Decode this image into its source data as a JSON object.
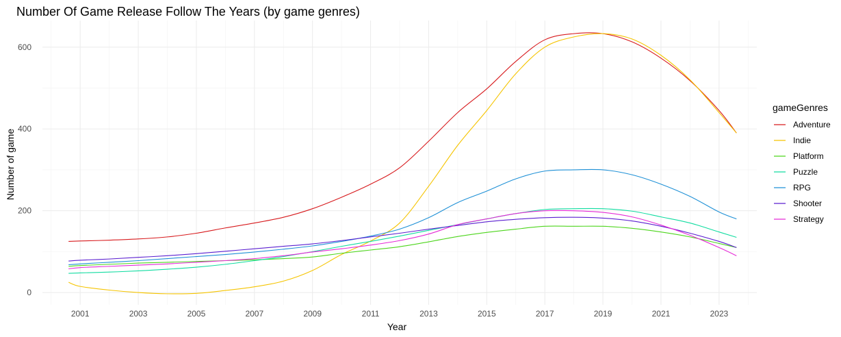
{
  "chart_data": {
    "type": "line",
    "title": "Number Of Game Release Follow The Years (by game genres)",
    "xlabel": "Year",
    "ylabel": "Number of game",
    "xlim": [
      1999.7,
      2024.3
    ],
    "ylim": [
      -30,
      665
    ],
    "x_ticks": [
      2001,
      2003,
      2005,
      2007,
      2009,
      2011,
      2013,
      2015,
      2017,
      2019,
      2021,
      2023
    ],
    "y_ticks": [
      0,
      200,
      400,
      600
    ],
    "grid": true,
    "legend": {
      "title": "gameGenres",
      "placement": "right"
    },
    "x": [
      2000.6,
      2001,
      2002,
      2003,
      2004,
      2005,
      2006,
      2007,
      2008,
      2009,
      2010,
      2011,
      2012,
      2013,
      2014,
      2015,
      2016,
      2017,
      2018,
      2019,
      2020,
      2021,
      2022,
      2023,
      2023.6
    ],
    "series": [
      {
        "name": "Adventure",
        "color": "#d7191c",
        "values": [
          125,
          126,
          128,
          131,
          136,
          145,
          158,
          170,
          184,
          205,
          233,
          265,
          305,
          370,
          440,
          498,
          565,
          618,
          633,
          633,
          613,
          573,
          518,
          445,
          390
        ]
      },
      {
        "name": "Indie",
        "color": "#f5c400",
        "values": [
          25,
          15,
          6,
          0,
          -3,
          -2,
          5,
          14,
          28,
          54,
          93,
          126,
          170,
          260,
          360,
          445,
          535,
          600,
          625,
          633,
          620,
          580,
          520,
          440,
          390
        ]
      },
      {
        "name": "Platform",
        "color": "#4cd51b",
        "values": [
          64,
          66,
          69,
          72,
          74,
          76,
          78,
          80,
          83,
          87,
          96,
          104,
          112,
          124,
          137,
          147,
          155,
          162,
          162,
          162,
          157,
          148,
          136,
          120,
          110
        ]
      },
      {
        "name": "Puzzle",
        "color": "#10dca0",
        "values": [
          47,
          48,
          50,
          53,
          57,
          62,
          69,
          78,
          88,
          100,
          113,
          125,
          138,
          152,
          166,
          180,
          193,
          203,
          205,
          205,
          199,
          185,
          170,
          148,
          135
        ]
      },
      {
        "name": "RPG",
        "color": "#1e90d6",
        "values": [
          68,
          70,
          74,
          78,
          83,
          88,
          93,
          99,
          106,
          114,
          125,
          138,
          155,
          183,
          220,
          248,
          278,
          297,
          300,
          300,
          288,
          265,
          235,
          197,
          180
        ]
      },
      {
        "name": "Shooter",
        "color": "#5a1ed0",
        "values": [
          77,
          79,
          82,
          86,
          90,
          95,
          101,
          107,
          113,
          119,
          127,
          136,
          145,
          155,
          164,
          173,
          179,
          183,
          184,
          182,
          175,
          162,
          145,
          125,
          110
        ]
      },
      {
        "name": "Strategy",
        "color": "#e52ad6",
        "values": [
          58,
          61,
          64,
          67,
          70,
          74,
          78,
          83,
          90,
          99,
          107,
          116,
          127,
          143,
          166,
          180,
          193,
          200,
          200,
          196,
          185,
          165,
          140,
          110,
          90
        ]
      }
    ]
  }
}
